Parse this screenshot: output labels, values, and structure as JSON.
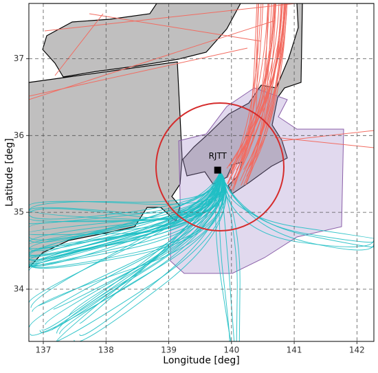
{
  "chart_data": {
    "type": "map",
    "x_label": "Longitude [deg]",
    "y_label": "Latitude [deg]",
    "xlim": [
      136.77,
      142.27
    ],
    "ylim": [
      33.32,
      37.72
    ],
    "xticks": [
      137,
      138,
      139,
      140,
      141,
      142
    ],
    "yticks": [
      34,
      35,
      36,
      37
    ],
    "grid": true,
    "points": [
      {
        "label": "RJTT",
        "lon": 139.78,
        "lat": 35.55
      }
    ]
  }
}
